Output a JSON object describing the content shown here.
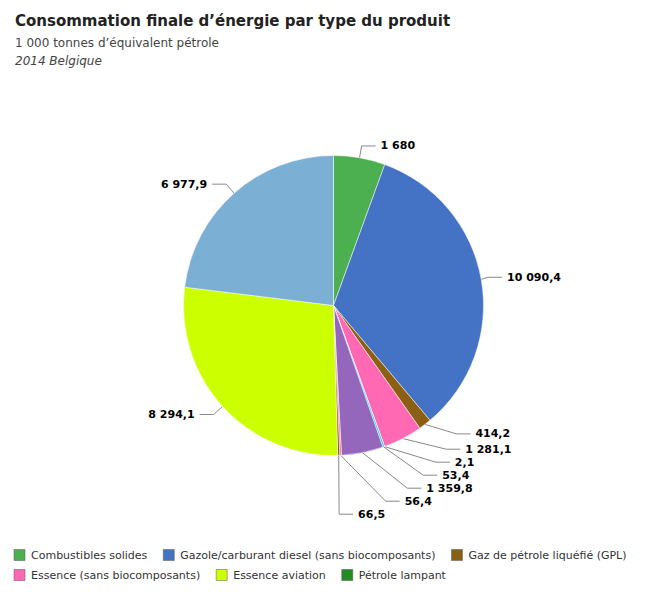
{
  "chart_data": {
    "type": "pie",
    "title": "Consommation finale d’énergie par type du produit",
    "subtitle": "1 000 tonnes d’équivalent pétrole",
    "subtitle2": "2014 Belgique",
    "values": [
      1680,
      10090.4,
      414.2,
      1281.1,
      2.1,
      53.4,
      1359.8,
      56.4,
      66.5,
      8294.1,
      6977.9
    ],
    "value_labels": [
      "1 680",
      "10 090,4",
      "414,2",
      "1 281,1",
      "2,1",
      "53,4",
      "1 359,8",
      "56,4",
      "66,5",
      "8 294,1",
      "6 977,9"
    ],
    "colors": [
      "#4CAF50",
      "#4472C4",
      "#8B6014",
      "#FF69B4",
      "#9467BD",
      "#00CFFF",
      "#9467BD",
      "#FF69B4",
      "#8B6014",
      "#CCFF00",
      "#7BAFD4"
    ],
    "data_labels": true,
    "legend": "bottom",
    "legend_entries": [
      {
        "name": "Combustibles solides",
        "color": "#4CAF50"
      },
      {
        "name": "Gazole/carburant diesel (sans biocomposants)",
        "color": "#4472C4"
      },
      {
        "name": "Gaz de pétrole liquéfié (GPL)",
        "color": "#8B6014"
      },
      {
        "name": "Essence (sans biocomposants)",
        "color": "#FF69B4"
      },
      {
        "name": "Essence aviation",
        "color": "#CCFF00"
      },
      {
        "name": "Pétrole lampant",
        "color": "#228B22"
      }
    ]
  }
}
